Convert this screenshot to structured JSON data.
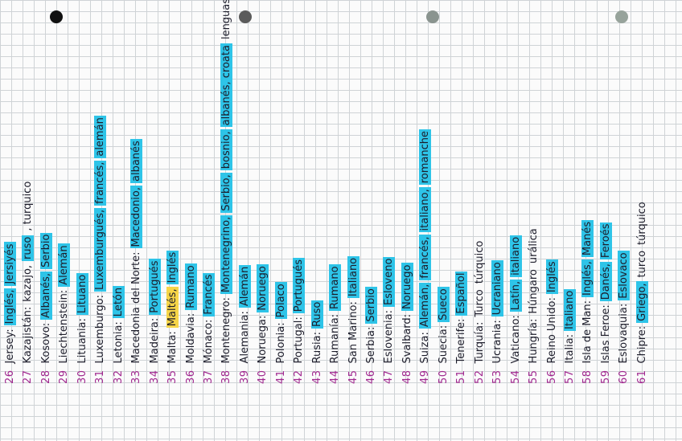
{
  "holes": [
    {
      "color": "#111111"
    },
    {
      "color": "#5b5b5b"
    },
    {
      "color": "#8a948f"
    },
    {
      "color": "#97a39b"
    }
  ],
  "entries": [
    {
      "number": "26",
      "country": "Jersey:",
      "langs": [
        {
          "text": "Inglés,",
          "hl": "blue"
        },
        {
          "text": "Jersiyés",
          "hl": "blue"
        }
      ]
    },
    {
      "number": "27",
      "country": "Kazajistán:",
      "langs": [
        {
          "text": "kazajo,",
          "hl": "none"
        },
        {
          "text": "ruso",
          "hl": "blue"
        },
        {
          "text": ", turquico",
          "hl": "none"
        }
      ]
    },
    {
      "number": "28",
      "country": "Kosovo:",
      "langs": [
        {
          "text": "Albanés,",
          "hl": "blue"
        },
        {
          "text": "Serbio",
          "hl": "blue"
        }
      ]
    },
    {
      "number": "29",
      "country": "Liechtenstein:",
      "langs": [
        {
          "text": "Alemán",
          "hl": "blue"
        }
      ]
    },
    {
      "number": "30",
      "country": "Lituania:",
      "langs": [
        {
          "text": "Lituano",
          "hl": "blue"
        }
      ]
    },
    {
      "number": "31",
      "country": "Luxemburgo:",
      "langs": [
        {
          "text": "Luxemburgués,",
          "hl": "blue"
        },
        {
          "text": "francés,",
          "hl": "blue"
        },
        {
          "text": "alemán",
          "hl": "blue"
        }
      ]
    },
    {
      "number": "32",
      "country": "Letonia:",
      "langs": [
        {
          "text": "Letón",
          "hl": "blue"
        }
      ]
    },
    {
      "number": "33",
      "country": "Macedonia del Norte:",
      "langs": [
        {
          "text": "Macedonio,",
          "hl": "blue"
        },
        {
          "text": "albanés",
          "hl": "blue"
        }
      ]
    },
    {
      "number": "34",
      "country": "Madeira:",
      "langs": [
        {
          "text": "Portugués",
          "hl": "blue"
        }
      ]
    },
    {
      "number": "35",
      "country": "Malta:",
      "langs": [
        {
          "text": "Maltés,",
          "hl": "yellow"
        },
        {
          "text": "Inglés",
          "hl": "blue"
        }
      ]
    },
    {
      "number": "36",
      "country": "Moldavia:",
      "langs": [
        {
          "text": "Rumano",
          "hl": "blue"
        }
      ]
    },
    {
      "number": "37",
      "country": "Mónaco:",
      "langs": [
        {
          "text": "Francés",
          "hl": "blue"
        }
      ]
    },
    {
      "number": "38",
      "country": "Montenegro:",
      "langs": [
        {
          "text": "Montenegrino,",
          "hl": "blue"
        },
        {
          "text": "Serbio,",
          "hl": "blue"
        },
        {
          "text": "bosnio,",
          "hl": "blue"
        },
        {
          "text": "albanés, croata",
          "hl": "blue"
        },
        {
          "text": "lenguas minoritarias",
          "hl": "none"
        }
      ]
    },
    {
      "number": "39",
      "country": "Alemania:",
      "langs": [
        {
          "text": "Alemán",
          "hl": "blue"
        }
      ]
    },
    {
      "number": "40",
      "country": "Noruega:",
      "langs": [
        {
          "text": "Noruego",
          "hl": "blue"
        }
      ]
    },
    {
      "number": "41",
      "country": "Polonia:",
      "langs": [
        {
          "text": "Polaco",
          "hl": "blue"
        }
      ]
    },
    {
      "number": "42",
      "country": "Portugal:",
      "langs": [
        {
          "text": "Portugués",
          "hl": "blue"
        }
      ]
    },
    {
      "number": "43",
      "country": "Rusia:",
      "langs": [
        {
          "text": "Ruso",
          "hl": "blue"
        }
      ]
    },
    {
      "number": "44",
      "country": "Rumanía:",
      "langs": [
        {
          "text": "Rumano",
          "hl": "blue"
        }
      ]
    },
    {
      "number": "45",
      "country": "San Marino:",
      "langs": [
        {
          "text": "Italiano",
          "hl": "blue"
        }
      ]
    },
    {
      "number": "46",
      "country": "Serbia:",
      "langs": [
        {
          "text": "Serbio",
          "hl": "blue"
        }
      ]
    },
    {
      "number": "47",
      "country": "Eslovenia:",
      "langs": [
        {
          "text": "Esloveno",
          "hl": "blue"
        }
      ]
    },
    {
      "number": "48",
      "country": "Svalbard:",
      "langs": [
        {
          "text": "Noruego",
          "hl": "blue"
        }
      ]
    },
    {
      "number": "49",
      "country": "Suiza:",
      "langs": [
        {
          "text": "Alemán,",
          "hl": "blue"
        },
        {
          "text": "francés,",
          "hl": "blue"
        },
        {
          "text": "italiano,",
          "hl": "blue"
        },
        {
          "text": "romanche",
          "hl": "blue"
        }
      ]
    },
    {
      "number": "50",
      "country": "Suecia:",
      "langs": [
        {
          "text": "Sueco",
          "hl": "blue"
        }
      ]
    },
    {
      "number": "51",
      "country": "Tenerife:",
      "langs": [
        {
          "text": "Español",
          "hl": "blue"
        }
      ]
    },
    {
      "number": "52",
      "country": "Turquía:",
      "langs": [
        {
          "text": "Turco",
          "hl": "none"
        },
        {
          "text": "túrquico",
          "hl": "none"
        }
      ]
    },
    {
      "number": "53",
      "country": "Ucrania:",
      "langs": [
        {
          "text": "Ucraniano",
          "hl": "blue"
        }
      ]
    },
    {
      "number": "54",
      "country": "Vaticano:",
      "langs": [
        {
          "text": "Latín,",
          "hl": "blue"
        },
        {
          "text": "italiano",
          "hl": "blue"
        }
      ]
    },
    {
      "number": "55",
      "country": "Hungría:",
      "langs": [
        {
          "text": "Húngaro",
          "hl": "none"
        },
        {
          "text": "urálica",
          "hl": "none"
        }
      ]
    },
    {
      "number": "56",
      "country": "Reino Unido:",
      "langs": [
        {
          "text": "Inglés",
          "hl": "blue"
        }
      ]
    },
    {
      "number": "57",
      "country": "Italia:",
      "langs": [
        {
          "text": "Italiano",
          "hl": "blue"
        }
      ]
    },
    {
      "number": "58",
      "country": "Isla de Man:",
      "langs": [
        {
          "text": "Inglés,",
          "hl": "blue"
        },
        {
          "text": "Manés",
          "hl": "blue"
        }
      ]
    },
    {
      "number": "59",
      "country": "Islas Feroe:",
      "langs": [
        {
          "text": "Danés,",
          "hl": "blue"
        },
        {
          "text": "Feroés",
          "hl": "blue"
        }
      ]
    },
    {
      "number": "60",
      "country": "Eslovaquia:",
      "langs": [
        {
          "text": "Eslovaco",
          "hl": "blue"
        }
      ]
    },
    {
      "number": "61",
      "country": "Chipre:",
      "langs": [
        {
          "text": "Griego,",
          "hl": "blue"
        },
        {
          "text": "turco",
          "hl": "none"
        },
        {
          "text": "túrquico",
          "hl": "none"
        }
      ]
    }
  ]
}
